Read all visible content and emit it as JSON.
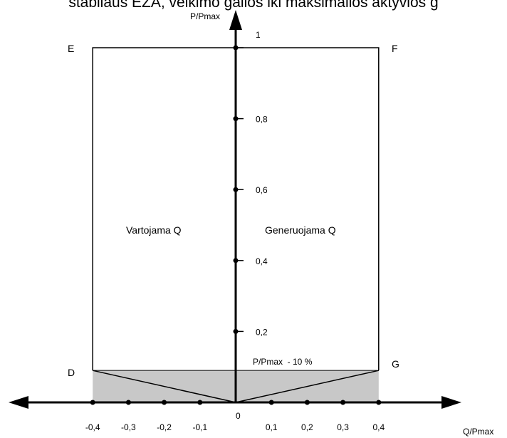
{
  "title": "stabilaus EŽA, veikimo galios iki maksimalios aktyvios g",
  "axes": {
    "y_label": "P/Pmax",
    "x_label": "Q/Pmax",
    "origin_label": "0"
  },
  "corners": {
    "E": "E",
    "F": "F",
    "D": "D",
    "G": "G"
  },
  "regions": {
    "left": "Vartojama Q",
    "right": "Generuojama Q"
  },
  "threshold_label": "P/Pmax  - 10 %",
  "colors": {
    "shaded_area": "#c8c8c8",
    "lines": "#000000"
  },
  "chart_data": {
    "type": "diagram",
    "x_ticks": [
      {
        "value": -0.4,
        "label": "-0,4"
      },
      {
        "value": -0.3,
        "label": "-0,3"
      },
      {
        "value": -0.2,
        "label": "-0,2"
      },
      {
        "value": -0.1,
        "label": "-0,1"
      },
      {
        "value": 0.1,
        "label": "0,1"
      },
      {
        "value": 0.2,
        "label": "0,2"
      },
      {
        "value": 0.3,
        "label": "0,3"
      },
      {
        "value": 0.4,
        "label": "0,4"
      }
    ],
    "y_ticks": [
      {
        "value": 0.2,
        "label": "0,2"
      },
      {
        "value": 0.4,
        "label": "0,4"
      },
      {
        "value": 0.6,
        "label": "0,6"
      },
      {
        "value": 0.8,
        "label": "0,8"
      },
      {
        "value": 1,
        "label": "1"
      }
    ],
    "capability_polygon": {
      "E": {
        "q": -0.4,
        "p": 1.0
      },
      "F": {
        "q": 0.4,
        "p": 1.0
      },
      "G": {
        "q": 0.4,
        "p": 0.09
      },
      "origin": {
        "q": 0,
        "p": 0
      },
      "D": {
        "q": -0.4,
        "p": 0.09
      }
    },
    "threshold_p": 0.09,
    "xlim": [
      -0.4,
      0.4
    ],
    "ylim": [
      0,
      1
    ]
  }
}
